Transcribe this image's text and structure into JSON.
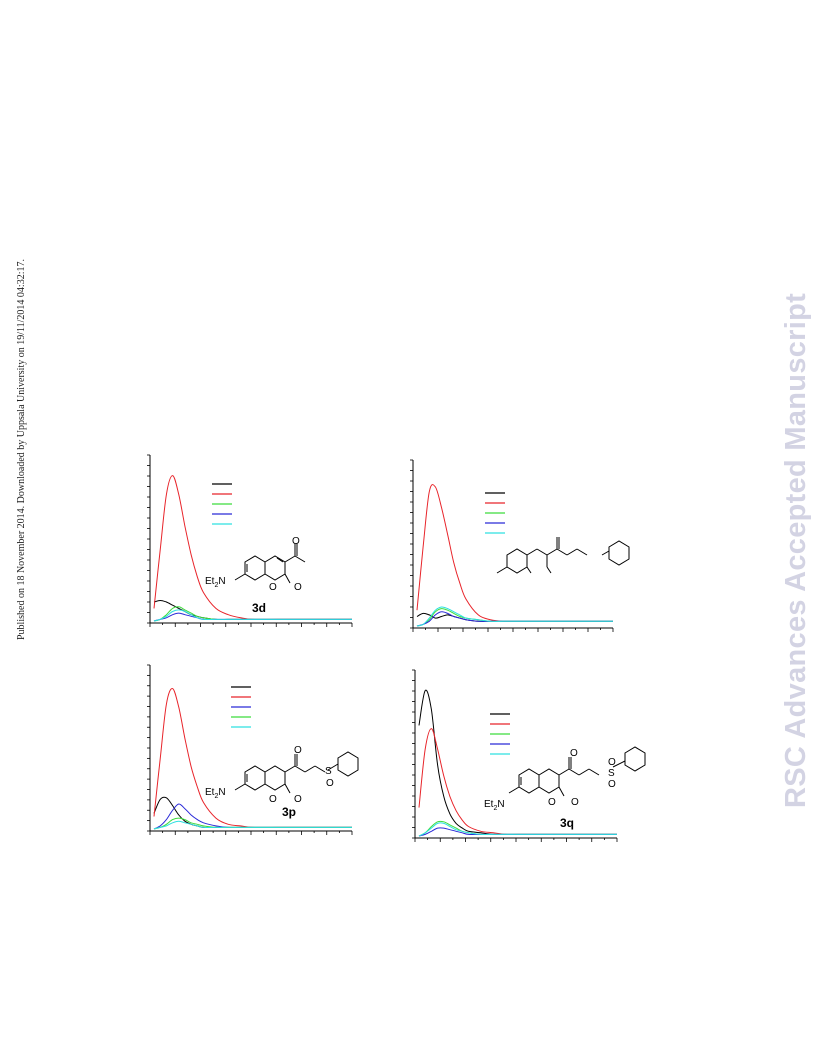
{
  "side_note": "Published on 18 November 2014. Downloaded by Uppsala University on 19/11/2014 04:32:17.",
  "watermark": "RSC Advances Accepted Manuscript",
  "colors": {
    "black": "#000000",
    "red": "#e8242a",
    "green": "#3cdc3c",
    "blue": "#2a2ad8",
    "cyan": "#2de0e0"
  },
  "chart_data": [
    {
      "type": "line",
      "compound_label": "3d",
      "substituent": "acetyl",
      "atom_labels": {
        "amine": "Et2N",
        "carbonyl_o": "O",
        "ring_o": "O",
        "lactone_o": "O"
      },
      "x": [
        0,
        0.5,
        1,
        1.5,
        2,
        2.5,
        3,
        3.5,
        4,
        5,
        6,
        7,
        8,
        10,
        12,
        14,
        16
      ],
      "ylim": [
        0,
        1
      ],
      "xlim": [
        0,
        16
      ],
      "series": [
        {
          "color": "black",
          "values": [
            0.12,
            0.13,
            0.12,
            0.1,
            0.08,
            0.06,
            0.04,
            0.03,
            0.02,
            0.01,
            0.01,
            0.01,
            0.01,
            0.01,
            0.01,
            0.01,
            0.01
          ]
        },
        {
          "color": "red",
          "values": [
            0.08,
            0.45,
            0.8,
            0.92,
            0.8,
            0.6,
            0.42,
            0.28,
            0.18,
            0.08,
            0.04,
            0.02,
            0.01,
            0.01,
            0.01,
            0.01,
            0.01
          ]
        },
        {
          "color": "green",
          "values": [
            0.0,
            0.01,
            0.04,
            0.08,
            0.09,
            0.07,
            0.05,
            0.03,
            0.02,
            0.01,
            0.01,
            0.01,
            0.01,
            0.01,
            0.01,
            0.01,
            0.01
          ]
        },
        {
          "color": "blue",
          "values": [
            0.0,
            0.01,
            0.02,
            0.04,
            0.05,
            0.04,
            0.03,
            0.02,
            0.01,
            0.01,
            0.01,
            0.01,
            0.01,
            0.01,
            0.01,
            0.01,
            0.01
          ]
        },
        {
          "color": "cyan",
          "values": [
            0.0,
            0.01,
            0.03,
            0.06,
            0.07,
            0.06,
            0.04,
            0.02,
            0.01,
            0.01,
            0.01,
            0.01,
            0.01,
            0.01,
            0.01,
            0.01,
            0.01
          ]
        }
      ]
    },
    {
      "type": "line",
      "compound_label": "",
      "substituent": "partial",
      "atom_labels": {},
      "x": [
        0,
        0.5,
        1,
        1.5,
        2,
        2.5,
        3,
        3.5,
        4,
        5,
        6,
        7,
        8,
        10,
        12,
        14,
        16
      ],
      "ylim": [
        0,
        1
      ],
      "xlim": [
        0,
        16
      ],
      "series": [
        {
          "color": "black",
          "values": [
            0.06,
            0.08,
            0.07,
            0.05,
            0.06,
            0.07,
            0.06,
            0.05,
            0.04,
            0.03,
            0.03,
            0.03,
            0.03,
            0.03,
            0.03,
            0.03,
            0.03
          ]
        },
        {
          "color": "red",
          "values": [
            0.1,
            0.5,
            0.85,
            0.88,
            0.75,
            0.58,
            0.4,
            0.27,
            0.17,
            0.07,
            0.04,
            0.03,
            0.03,
            0.03,
            0.03,
            0.03,
            0.03
          ]
        },
        {
          "color": "green",
          "values": [
            0.0,
            0.01,
            0.04,
            0.09,
            0.11,
            0.1,
            0.08,
            0.06,
            0.05,
            0.04,
            0.03,
            0.03,
            0.03,
            0.03,
            0.03,
            0.03,
            0.03
          ]
        },
        {
          "color": "blue",
          "values": [
            0.0,
            0.01,
            0.03,
            0.07,
            0.09,
            0.08,
            0.06,
            0.05,
            0.04,
            0.03,
            0.03,
            0.03,
            0.03,
            0.03,
            0.03,
            0.03,
            0.03
          ]
        },
        {
          "color": "cyan",
          "values": [
            0.0,
            0.01,
            0.05,
            0.1,
            0.12,
            0.11,
            0.09,
            0.07,
            0.05,
            0.04,
            0.03,
            0.03,
            0.03,
            0.03,
            0.03,
            0.03,
            0.03
          ]
        }
      ]
    },
    {
      "type": "line",
      "compound_label": "3p",
      "substituent": "sulfoxide",
      "atom_labels": {
        "amine": "Et2N",
        "carbonyl_o": "O",
        "ring_o": "O",
        "lactone_o": "O",
        "sulfur": "S",
        "sulfur_o": "O"
      },
      "x": [
        0,
        0.5,
        1,
        1.5,
        2,
        2.5,
        3,
        3.5,
        4,
        5,
        6,
        7,
        8,
        10,
        12,
        14,
        16
      ],
      "ylim": [
        0,
        1
      ],
      "xlim": [
        0,
        16
      ],
      "series": [
        {
          "color": "black",
          "values": [
            0.1,
            0.19,
            0.2,
            0.15,
            0.09,
            0.05,
            0.03,
            0.02,
            0.01,
            0.01,
            0.01,
            0.01,
            0.01,
            0.01,
            0.01,
            0.01,
            0.01
          ]
        },
        {
          "color": "red",
          "values": [
            0.08,
            0.45,
            0.8,
            0.9,
            0.78,
            0.58,
            0.4,
            0.27,
            0.17,
            0.07,
            0.03,
            0.02,
            0.01,
            0.01,
            0.01,
            0.01,
            0.01
          ]
        },
        {
          "color": "blue",
          "values": [
            0.0,
            0.02,
            0.06,
            0.12,
            0.16,
            0.13,
            0.09,
            0.06,
            0.04,
            0.02,
            0.01,
            0.01,
            0.01,
            0.01,
            0.01,
            0.01,
            0.01
          ]
        },
        {
          "color": "green",
          "values": [
            0.0,
            0.01,
            0.03,
            0.06,
            0.07,
            0.06,
            0.04,
            0.03,
            0.02,
            0.01,
            0.01,
            0.01,
            0.01,
            0.01,
            0.01,
            0.01,
            0.01
          ]
        },
        {
          "color": "cyan",
          "values": [
            0.0,
            0.01,
            0.02,
            0.04,
            0.05,
            0.04,
            0.03,
            0.02,
            0.01,
            0.01,
            0.01,
            0.01,
            0.01,
            0.01,
            0.01,
            0.01,
            0.01
          ]
        }
      ]
    },
    {
      "type": "line",
      "compound_label": "3q",
      "substituent": "sulfone",
      "atom_labels": {
        "amine": "Et2N",
        "carbonyl_o": "O",
        "ring_o": "O",
        "lactone_o": "O",
        "sulfur": "S",
        "sulfone_o1": "O",
        "sulfone_o2": "O"
      },
      "x": [
        0,
        0.5,
        1,
        1.5,
        2,
        2.5,
        3,
        3.5,
        4,
        5,
        6,
        7,
        8,
        10,
        12,
        14,
        16
      ],
      "ylim": [
        0,
        1
      ],
      "xlim": [
        0,
        16
      ],
      "series": [
        {
          "color": "black",
          "values": [
            0.7,
            0.92,
            0.8,
            0.45,
            0.25,
            0.14,
            0.08,
            0.05,
            0.03,
            0.02,
            0.01,
            0.01,
            0.01,
            0.01,
            0.01,
            0.01,
            0.01
          ]
        },
        {
          "color": "red",
          "values": [
            0.18,
            0.55,
            0.68,
            0.55,
            0.38,
            0.25,
            0.16,
            0.1,
            0.06,
            0.03,
            0.02,
            0.01,
            0.01,
            0.01,
            0.01,
            0.01,
            0.01
          ]
        },
        {
          "color": "green",
          "values": [
            0.0,
            0.02,
            0.06,
            0.09,
            0.09,
            0.07,
            0.05,
            0.03,
            0.02,
            0.01,
            0.01,
            0.01,
            0.01,
            0.01,
            0.01,
            0.01,
            0.01
          ]
        },
        {
          "color": "blue",
          "values": [
            0.0,
            0.01,
            0.03,
            0.05,
            0.05,
            0.04,
            0.03,
            0.02,
            0.01,
            0.01,
            0.01,
            0.01,
            0.01,
            0.01,
            0.01,
            0.01,
            0.01
          ]
        },
        {
          "color": "cyan",
          "values": [
            0.0,
            0.02,
            0.05,
            0.08,
            0.08,
            0.06,
            0.04,
            0.03,
            0.02,
            0.01,
            0.01,
            0.01,
            0.01,
            0.01,
            0.01,
            0.01,
            0.01
          ]
        }
      ]
    }
  ]
}
